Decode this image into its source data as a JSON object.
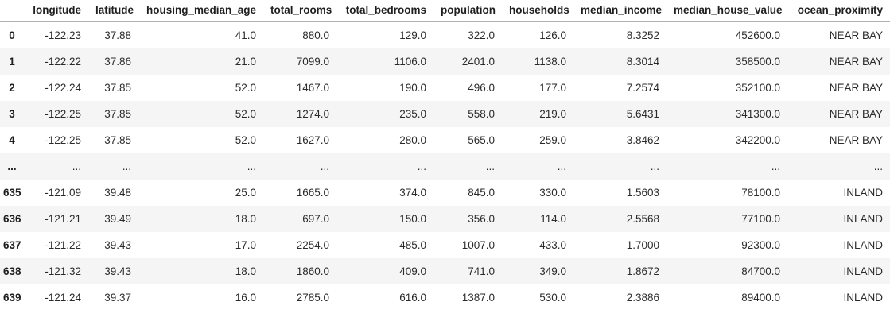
{
  "table": {
    "index_header": "",
    "columns": [
      "longitude",
      "latitude",
      "housing_median_age",
      "total_rooms",
      "total_bedrooms",
      "population",
      "households",
      "median_income",
      "median_house_value",
      "ocean_proximity"
    ],
    "rows": [
      {
        "index": "0",
        "cells": [
          "-122.23",
          "37.88",
          "41.0",
          "880.0",
          "129.0",
          "322.0",
          "126.0",
          "8.3252",
          "452600.0",
          "NEAR BAY"
        ]
      },
      {
        "index": "1",
        "cells": [
          "-122.22",
          "37.86",
          "21.0",
          "7099.0",
          "1106.0",
          "2401.0",
          "1138.0",
          "8.3014",
          "358500.0",
          "NEAR BAY"
        ]
      },
      {
        "index": "2",
        "cells": [
          "-122.24",
          "37.85",
          "52.0",
          "1467.0",
          "190.0",
          "496.0",
          "177.0",
          "7.2574",
          "352100.0",
          "NEAR BAY"
        ]
      },
      {
        "index": "3",
        "cells": [
          "-122.25",
          "37.85",
          "52.0",
          "1274.0",
          "235.0",
          "558.0",
          "219.0",
          "5.6431",
          "341300.0",
          "NEAR BAY"
        ]
      },
      {
        "index": "4",
        "cells": [
          "-122.25",
          "37.85",
          "52.0",
          "1627.0",
          "280.0",
          "565.0",
          "259.0",
          "3.8462",
          "342200.0",
          "NEAR BAY"
        ]
      },
      {
        "index": "...",
        "cells": [
          "...",
          "...",
          "...",
          "...",
          "...",
          "...",
          "...",
          "...",
          "...",
          "..."
        ]
      },
      {
        "index": "635",
        "cells": [
          "-121.09",
          "39.48",
          "25.0",
          "1665.0",
          "374.0",
          "845.0",
          "330.0",
          "1.5603",
          "78100.0",
          "INLAND"
        ]
      },
      {
        "index": "636",
        "cells": [
          "-121.21",
          "39.49",
          "18.0",
          "697.0",
          "150.0",
          "356.0",
          "114.0",
          "2.5568",
          "77100.0",
          "INLAND"
        ]
      },
      {
        "index": "637",
        "cells": [
          "-121.22",
          "39.43",
          "17.0",
          "2254.0",
          "485.0",
          "1007.0",
          "433.0",
          "1.7000",
          "92300.0",
          "INLAND"
        ]
      },
      {
        "index": "638",
        "cells": [
          "-121.32",
          "39.43",
          "18.0",
          "1860.0",
          "409.0",
          "741.0",
          "349.0",
          "1.8672",
          "84700.0",
          "INLAND"
        ]
      },
      {
        "index": "639",
        "cells": [
          "-121.24",
          "39.37",
          "16.0",
          "2785.0",
          "616.0",
          "1387.0",
          "530.0",
          "2.3886",
          "89400.0",
          "INLAND"
        ]
      }
    ]
  },
  "colors": {
    "stripe": "#f5f5f5",
    "header_border": "#b1b1b1",
    "header_text": "#1f1f1f",
    "text": "#2b2b2b"
  }
}
